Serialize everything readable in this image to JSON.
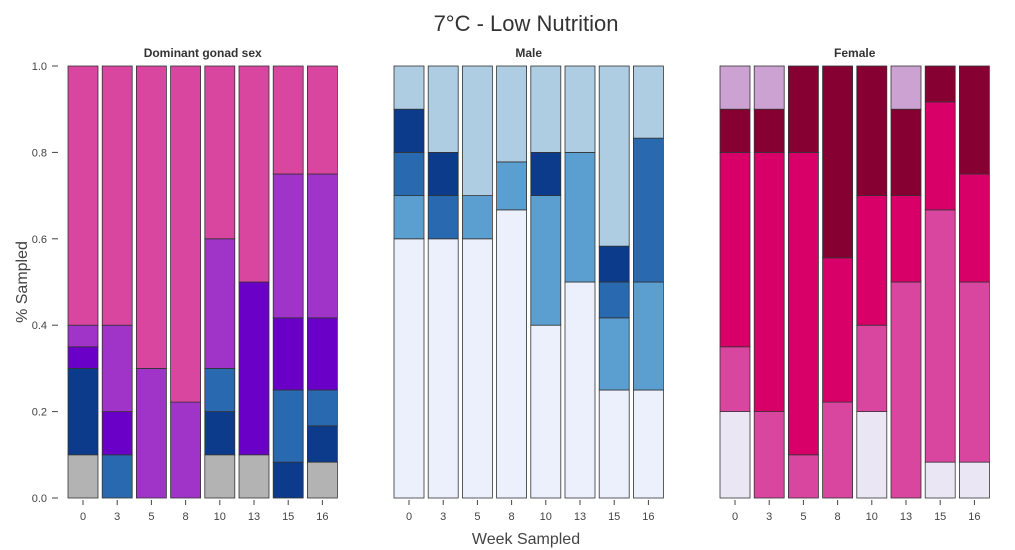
{
  "chart_data": {
    "type": "bar",
    "stacked": true,
    "title": "7°C - Low Nutrition",
    "xlabel": "Week Sampled",
    "ylabel": "% Sampled",
    "ylim": [
      0,
      1
    ],
    "yticks": [
      "0.0",
      "0.2",
      "0.4",
      "0.6",
      "0.8",
      "1.0"
    ],
    "grid": false,
    "categories": [
      "0",
      "3",
      "5",
      "8",
      "10",
      "13",
      "15",
      "16"
    ],
    "panels": [
      {
        "title": "Dominant gonad sex",
        "series": [
          {
            "color": "#b3b3b3",
            "values": [
              0.1,
              0,
              0,
              0,
              0.1,
              0.1,
              0,
              0.083
            ]
          },
          {
            "color": "#0c3b8c",
            "values": [
              0,
              0,
              0,
              0,
              0,
              0,
              0.083,
              0
            ]
          },
          {
            "color": "#2869b0",
            "values": [
              0,
              0.1,
              0,
              0,
              0,
              0,
              0.167,
              0
            ]
          },
          {
            "color": "#0c3b8c",
            "values": [
              0.2,
              0,
              0,
              0,
              0.1,
              0,
              0,
              0.084
            ]
          },
          {
            "color": "#2869b0",
            "values": [
              0,
              0,
              0,
              0,
              0.1,
              0,
              0,
              0.083
            ]
          },
          {
            "color": "#6a00c8",
            "values": [
              0.05,
              0.1,
              0,
              0,
              0,
              0.4,
              0.167,
              0.167
            ]
          },
          {
            "color": "#a033c8",
            "values": [
              0.05,
              0.2,
              0.3,
              0.222,
              0.3,
              0,
              0.333,
              0.333
            ]
          },
          {
            "color": "#d846a0",
            "values": [
              0.6,
              0.6,
              0.7,
              0.778,
              0.4,
              0.5,
              0.25,
              0.25
            ]
          }
        ]
      },
      {
        "title": "Male",
        "series": [
          {
            "color": "#ebf0fc",
            "values": [
              0.6,
              0.6,
              0.6,
              0.667,
              0.4,
              0.5,
              0.25,
              0.25
            ]
          },
          {
            "color": "#5a9fd0",
            "values": [
              0.1,
              0,
              0.1,
              0.111,
              0.3,
              0.3,
              0.167,
              0.25
            ]
          },
          {
            "color": "#2869b0",
            "values": [
              0.1,
              0.1,
              0,
              0,
              0,
              0,
              0.083,
              0.333
            ]
          },
          {
            "color": "#0c3b8c",
            "values": [
              0.1,
              0.1,
              0,
              0,
              0.1,
              0,
              0.083,
              0
            ]
          },
          {
            "color": "#aecde3",
            "values": [
              0.1,
              0.2,
              0.3,
              0.222,
              0.2,
              0.2,
              0.417,
              0.167
            ]
          }
        ]
      },
      {
        "title": "Female",
        "series": [
          {
            "color": "#ebe6f3",
            "values": [
              0.2,
              0,
              0,
              0,
              0.2,
              0,
              0.083,
              0.083
            ]
          },
          {
            "color": "#d846a0",
            "values": [
              0.15,
              0.2,
              0.1,
              0.222,
              0.2,
              0.5,
              0.584,
              0.417
            ]
          },
          {
            "color": "#d80068",
            "values": [
              0.45,
              0.6,
              0.7,
              0.334,
              0.3,
              0.2,
              0.25,
              0.25
            ]
          },
          {
            "color": "#870032",
            "values": [
              0.1,
              0.1,
              0.2,
              0.444,
              0.3,
              0.2,
              0.083,
              0.25
            ]
          },
          {
            "color": "#cca2d2",
            "values": [
              0.1,
              0.1,
              0,
              0,
              0,
              0.1,
              0,
              0
            ]
          }
        ]
      }
    ]
  }
}
